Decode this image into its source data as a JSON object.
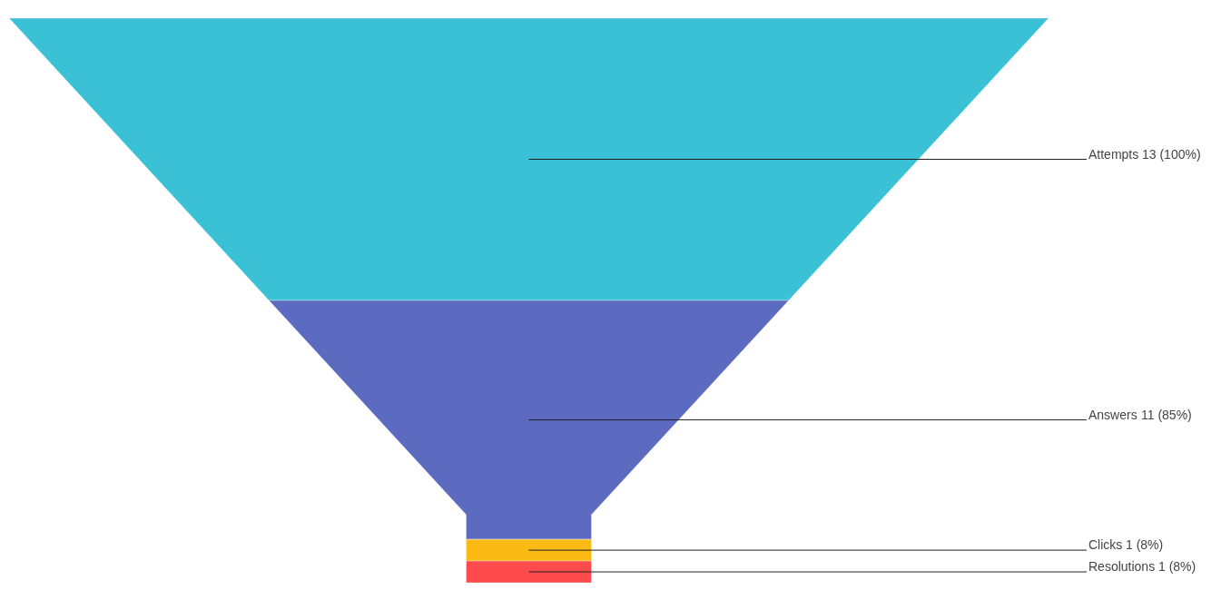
{
  "chart_data": {
    "type": "other",
    "categories": [
      "Attempts",
      "Answers",
      "Clicks",
      "Resolutions"
    ],
    "values": [
      13,
      11,
      1,
      1
    ],
    "colors": [
      "#3bc1d6",
      "#5c6bc0",
      "#fbb914",
      "#fd4a4c"
    ],
    "value_labels": [
      "13 (100%)",
      "11 (85%)",
      "1 (8%)",
      "1 (8%)"
    ]
  }
}
